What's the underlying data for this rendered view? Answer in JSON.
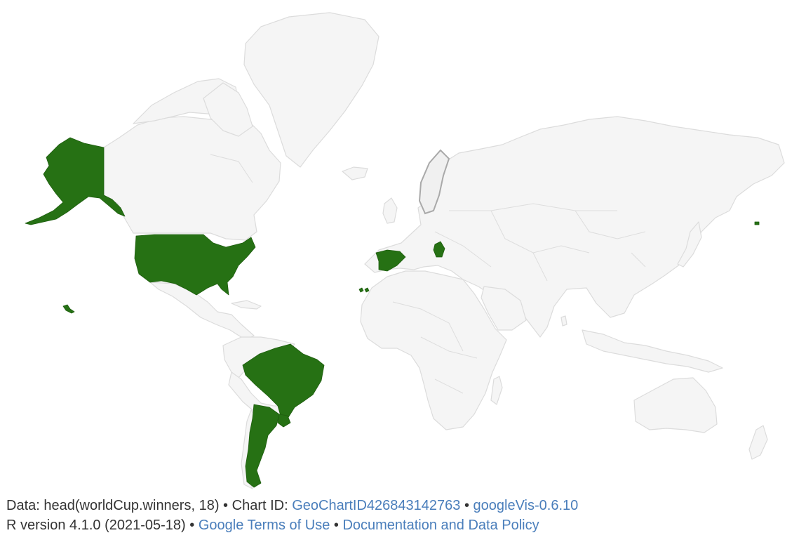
{
  "colors": {
    "land": "#f5f5f5",
    "land_border": "#dcdcdc",
    "winner": "#267114",
    "link": "#4a7ebb",
    "text": "#333333"
  },
  "map": {
    "highlighted_regions": [
      "United States",
      "Brazil",
      "Argentina",
      "Uruguay",
      "Spain",
      "Serbia"
    ]
  },
  "footer": {
    "line1": {
      "data_text": "Data: head(worldCup.winners, 18)",
      "sep1": " • ",
      "chart_id_label": "Chart ID: ",
      "chart_id_link": "GeoChartID426843142763",
      "sep2": " • ",
      "version_link": "googleVis-0.6.10"
    },
    "line2": {
      "r_version": "R version 4.1.0 (2021-05-18)",
      "sep1": " • ",
      "terms_link": "Google Terms of Use",
      "sep2": " • ",
      "policy_link": "Documentation and Data Policy"
    }
  }
}
